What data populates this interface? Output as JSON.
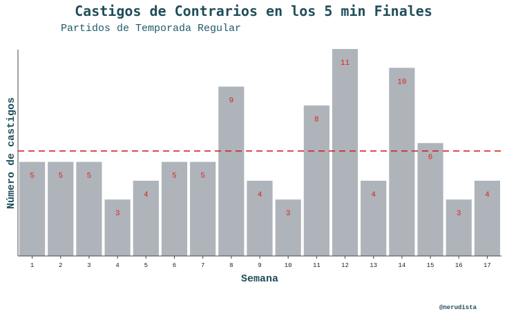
{
  "title": "Castigos de Contrarios en los 5 min Finales",
  "subtitle": "Partidos de Temporada Regular",
  "credit": "@nerudista",
  "colors": {
    "bar": "#aeb4ba",
    "value_label": "#e02020",
    "mean_line": "#d62020",
    "title": "#1f4e5a"
  },
  "chart_data": {
    "type": "bar",
    "categories": [
      "1",
      "2",
      "3",
      "4",
      "5",
      "6",
      "7",
      "8",
      "9",
      "10",
      "11",
      "12",
      "13",
      "14",
      "15",
      "16",
      "17"
    ],
    "values": [
      5,
      5,
      5,
      3,
      4,
      5,
      5,
      9,
      4,
      3,
      8,
      11,
      4,
      10,
      6,
      3,
      4
    ],
    "title": "Castigos de Contrarios en los 5 min Finales",
    "subtitle": "Partidos de Temporada Regular",
    "xlabel": "Semana",
    "ylabel": "Número de castigos",
    "ylim": [
      0,
      11
    ],
    "reference_line": {
      "style": "dashed",
      "value": 5.58
    },
    "grid": false,
    "data_labels": true
  }
}
